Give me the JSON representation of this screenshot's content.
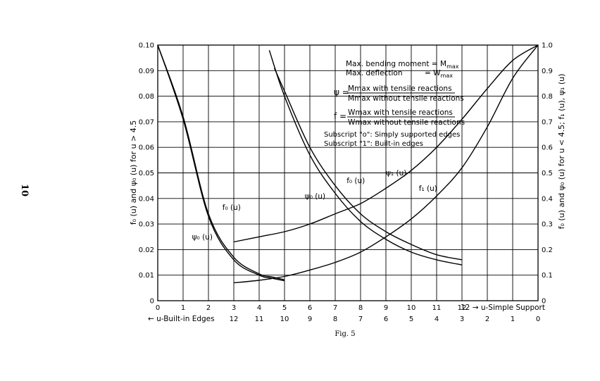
{
  "page_number": "10",
  "caption": "Fig. 5",
  "chart_data": {
    "type": "line",
    "x_bottom_top_row": {
      "ticks": [
        "0",
        "1",
        "2",
        "3",
        "4",
        "5",
        "6",
        "7",
        "8",
        "9",
        "10",
        "11",
        "12"
      ],
      "arrow_label": "12 → u-Simple Support",
      "range": [
        0,
        15
      ]
    },
    "x_bottom_second_row": {
      "ticks": [
        "12",
        "11",
        "10",
        "9",
        "8",
        "7",
        "6",
        "5",
        "4",
        "3",
        "2",
        "1",
        "0"
      ],
      "arrow_label": "← u-Built-in Edges"
    },
    "y_left": {
      "label": "f₀ (u) and ψ₀ (u) for u > 4.5",
      "ticks": [
        "0",
        "0.01",
        "0.02",
        "0.03",
        "0.04",
        "0.05",
        "0.06",
        "0.07",
        "0.08",
        "0.09",
        "0.10"
      ],
      "range": [
        0,
        0.1
      ]
    },
    "y_right": {
      "label": "f₀ (u) and ψ₀ (u) for u < 4.5; f₁ (u), ψ₁ (u)",
      "ticks": [
        "0",
        "0.1",
        "0.2",
        "0.3",
        "0.4",
        "0.5",
        "0.6",
        "0.7",
        "0.8",
        "0.9",
        "1.0"
      ],
      "range": [
        0,
        1.0
      ]
    },
    "grid": true,
    "legend_text": {
      "line1": "Max. bending moment = M",
      "line1_sub": "max",
      "line2": "Max. deflection",
      "line2_eq": "= W",
      "line2_sub": "max",
      "psi_sym": "ψ =",
      "psi_num": "Mmax with tensile reactions",
      "psi_den": "Mmax without tensile reactions",
      "f_sym": "f =",
      "f_num": "Wmax with tensile reactions",
      "f_den": "Wmax without tensile reactions",
      "sub0": "Subscript \"o\": Simply supported edges",
      "sub1": "Subscript \"1\": Built-in edges"
    },
    "series": [
      {
        "name": "f₀ (u)",
        "axis": "left",
        "x": [
          0,
          1,
          2,
          3,
          4,
          4.5,
          5
        ],
        "y": [
          0.1,
          0.072,
          0.034,
          0.017,
          0.0105,
          0.0093,
          0.0082
        ]
      },
      {
        "name": "ψ₀ (u)",
        "axis": "left",
        "x": [
          0,
          1,
          2,
          3,
          4,
          4.5,
          5
        ],
        "y": [
          0.1,
          0.071,
          0.033,
          0.016,
          0.01,
          0.0088,
          0.0078
        ]
      },
      {
        "name": "f₀ (u)",
        "axis": "right",
        "x": [
          4.6,
          5,
          6,
          7,
          8,
          9,
          10,
          11,
          12
        ],
        "y": [
          0.91,
          0.82,
          0.6,
          0.45,
          0.34,
          0.27,
          0.22,
          0.18,
          0.16
        ]
      },
      {
        "name": "ψ₀ (u)",
        "axis": "right",
        "x": [
          4.4,
          5,
          6,
          7,
          8,
          9,
          10,
          11,
          12
        ],
        "y": [
          0.98,
          0.8,
          0.57,
          0.42,
          0.31,
          0.24,
          0.19,
          0.16,
          0.14
        ]
      },
      {
        "name": "ψ₁ (u)",
        "axis": "right",
        "x": [
          3,
          4,
          5,
          6,
          7,
          8,
          9,
          10,
          11,
          12,
          13,
          14,
          15
        ],
        "y": [
          0.23,
          0.25,
          0.27,
          0.3,
          0.34,
          0.38,
          0.44,
          0.51,
          0.6,
          0.71,
          0.83,
          0.94,
          1.0
        ]
      },
      {
        "name": "f₁ (u)",
        "axis": "right",
        "x": [
          3,
          4,
          5,
          6,
          7,
          8,
          9,
          10,
          11,
          12,
          13,
          14,
          15
        ],
        "y": [
          0.07,
          0.08,
          0.095,
          0.12,
          0.15,
          0.19,
          0.25,
          0.32,
          0.41,
          0.52,
          0.68,
          0.87,
          1.0
        ]
      }
    ],
    "curve_labels": [
      {
        "text": "f₀ (u)",
        "x": 2.55,
        "y": 0.0355,
        "axis": "left"
      },
      {
        "text": "ψ₀ (u)",
        "x": 1.35,
        "y": 0.024,
        "axis": "left"
      },
      {
        "text": "f₀ (u)",
        "x": 7.45,
        "y": 0.46,
        "axis": "right"
      },
      {
        "text": "ψ₀ (u)",
        "x": 5.8,
        "y": 0.4,
        "axis": "right"
      },
      {
        "text": "ψ₁ (u)",
        "x": 9.0,
        "y": 0.49,
        "axis": "right"
      },
      {
        "text": "f₁ (u)",
        "x": 10.3,
        "y": 0.43,
        "axis": "right"
      }
    ]
  }
}
